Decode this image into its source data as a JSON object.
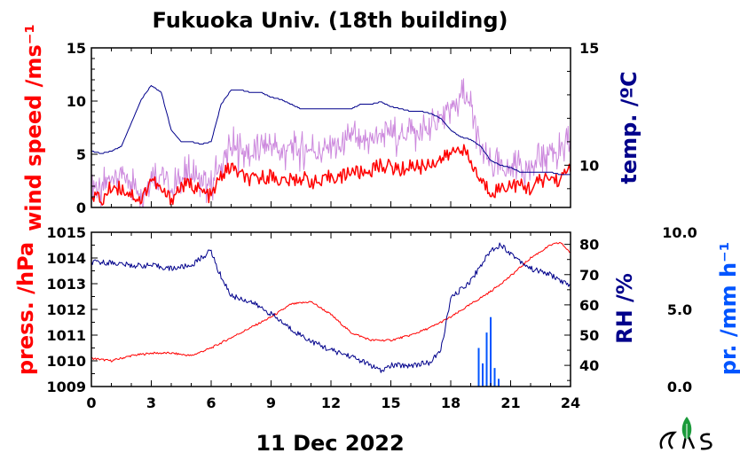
{
  "colors": {
    "red": "#ff0000",
    "navy": "#00008b",
    "pink": "#cc88dd",
    "blue": "#0055ff",
    "logo_green": "#1a9a3a",
    "axis": "#000000"
  },
  "chart_data": [
    {
      "type": "line",
      "title": "Fukuoka Univ. (18th building)",
      "xlabel": "11 Dec 2022",
      "ylabel_left": "wind speed /ms⁻¹",
      "ylabel_right": "temp. /ºC",
      "xlim": [
        0,
        24
      ],
      "ylim_left": [
        0,
        15
      ],
      "ylim_right": [
        8.2,
        15
      ],
      "x_ticks": [
        "0",
        "3",
        "6",
        "9",
        "12",
        "15",
        "18",
        "21",
        "24"
      ],
      "y_ticks_left": [
        "0",
        "5",
        "10",
        "15"
      ],
      "y_ticks_right": [
        "10",
        "15"
      ],
      "series": [
        {
          "axis": "left",
          "color": "#cc88dd",
          "style": "gust",
          "x": [
            0,
            0.5,
            1,
            1.5,
            2,
            2.5,
            3,
            3.5,
            4,
            4.5,
            5,
            5.5,
            6,
            6.5,
            7,
            7.5,
            8,
            8.5,
            9,
            9.5,
            10,
            10.5,
            11,
            11.5,
            12,
            12.5,
            13,
            13.5,
            14,
            14.5,
            15,
            15.5,
            16,
            16.5,
            17,
            17.5,
            18,
            18.5,
            19,
            19.5,
            20,
            20.5,
            21,
            21.5,
            22,
            22.5,
            23,
            23.5,
            24
          ],
          "y": [
            2.5,
            1.5,
            3.0,
            2.8,
            2.5,
            1.2,
            3.0,
            3.2,
            1.5,
            2.8,
            3.0,
            2.5,
            1.8,
            4.0,
            5.5,
            5.2,
            4.8,
            5.5,
            6.0,
            5.0,
            5.8,
            5.2,
            5.5,
            5.0,
            6.0,
            5.5,
            6.8,
            6.0,
            6.5,
            7.0,
            6.8,
            6.5,
            7.2,
            6.8,
            7.5,
            8.5,
            9.0,
            10.5,
            9.5,
            5.5,
            4.0,
            3.5,
            3.8,
            4.2,
            3.5,
            4.5,
            5.5,
            5.0,
            6.0
          ]
        },
        {
          "axis": "left",
          "color": "#ff0000",
          "style": "wind",
          "x": [
            0,
            0.5,
            1,
            1.5,
            2,
            2.5,
            3,
            3.5,
            4,
            4.5,
            5,
            5.5,
            6,
            6.5,
            7,
            7.5,
            8,
            8.5,
            9,
            9.5,
            10,
            10.5,
            11,
            11.5,
            12,
            12.5,
            13,
            13.5,
            14,
            14.5,
            15,
            15.5,
            16,
            16.5,
            17,
            17.5,
            18,
            18.5,
            19,
            19.5,
            20,
            20.5,
            21,
            21.5,
            22,
            22.5,
            23,
            23.5,
            24
          ],
          "y": [
            1.5,
            0.5,
            2.0,
            1.8,
            1.3,
            0.6,
            2.8,
            1.5,
            0.8,
            2.0,
            2.2,
            1.5,
            1.0,
            3.0,
            3.8,
            3.0,
            2.5,
            2.8,
            3.0,
            2.5,
            2.5,
            2.8,
            2.5,
            2.2,
            3.0,
            2.8,
            3.5,
            3.2,
            3.5,
            4.0,
            3.8,
            3.5,
            4.0,
            3.8,
            4.2,
            4.5,
            5.0,
            5.8,
            4.2,
            2.5,
            1.5,
            1.8,
            2.2,
            2.0,
            1.8,
            2.5,
            2.8,
            2.5,
            4.0
          ]
        },
        {
          "axis": "right",
          "color": "#00008b",
          "style": "temp",
          "x": [
            0,
            0.5,
            1,
            1.5,
            2,
            2.5,
            3,
            3.5,
            4,
            4.5,
            5,
            5.5,
            6,
            6.5,
            7,
            7.5,
            8,
            8.5,
            9,
            9.5,
            10,
            10.5,
            11,
            11.5,
            12,
            12.5,
            13,
            13.5,
            14,
            14.5,
            15,
            15.5,
            16,
            16.5,
            17,
            17.5,
            18,
            18.5,
            19,
            19.5,
            20,
            20.5,
            21,
            21.5,
            22,
            22.5,
            23,
            23.5,
            24
          ],
          "y": [
            10.6,
            10.5,
            10.6,
            10.8,
            11.8,
            12.8,
            13.4,
            13.1,
            11.5,
            11.0,
            11.0,
            10.9,
            11.0,
            12.6,
            13.2,
            13.2,
            13.1,
            13.1,
            12.9,
            12.8,
            12.6,
            12.4,
            12.4,
            12.4,
            12.4,
            12.4,
            12.4,
            12.6,
            12.6,
            12.7,
            12.5,
            12.4,
            12.3,
            12.3,
            12.2,
            12.0,
            11.5,
            11.2,
            11.1,
            10.8,
            10.2,
            10.0,
            9.9,
            9.7,
            9.7,
            9.7,
            9.7,
            9.6,
            9.6
          ]
        }
      ]
    },
    {
      "type": "line",
      "xlabel": "11 Dec 2022",
      "ylabel_left": "press. /hPa",
      "ylabel_right": "RH /%",
      "ylabel_right2": "pr. /mm h⁻¹",
      "xlim": [
        0,
        24
      ],
      "ylim_left": [
        1009,
        1015
      ],
      "ylim_right": [
        33,
        84
      ],
      "ylim_right2": [
        0,
        10
      ],
      "x_ticks": [
        "0",
        "3",
        "6",
        "9",
        "12",
        "15",
        "18",
        "21",
        "24"
      ],
      "y_ticks_left": [
        "1009",
        "1010",
        "1011",
        "1012",
        "1013",
        "1014",
        "1015"
      ],
      "y_ticks_right": [
        "40",
        "50",
        "60",
        "70",
        "80"
      ],
      "y_ticks_right2": [
        "0.0",
        "5.0",
        "10.0"
      ],
      "series": [
        {
          "axis": "left",
          "color": "#ff0000",
          "style": "pressure",
          "x": [
            0,
            1,
            2,
            3,
            4,
            5,
            6,
            7,
            8,
            9,
            10,
            11,
            12,
            13,
            14,
            15,
            16,
            17,
            18,
            19,
            20,
            21,
            22,
            23,
            23.5,
            24
          ],
          "y": [
            1010.1,
            1010.0,
            1010.2,
            1010.3,
            1010.3,
            1010.2,
            1010.5,
            1010.9,
            1011.3,
            1011.7,
            1012.2,
            1012.3,
            1011.8,
            1011.1,
            1010.8,
            1010.8,
            1011.0,
            1011.3,
            1011.7,
            1012.2,
            1012.7,
            1013.3,
            1014.0,
            1014.5,
            1014.6,
            1014.2
          ]
        },
        {
          "axis": "right",
          "color": "#00008b",
          "style": "rh",
          "x": [
            0,
            1,
            2,
            3,
            4,
            5,
            6,
            6.3,
            7,
            8,
            9,
            10,
            11,
            12,
            13,
            14,
            14.5,
            15,
            16,
            17,
            17.5,
            18,
            19,
            20,
            20.5,
            21,
            22,
            23,
            24
          ],
          "y": [
            74,
            74,
            73,
            73,
            72,
            73,
            78,
            72,
            63,
            61,
            57,
            52,
            48,
            45,
            43,
            40,
            38,
            40,
            40,
            41,
            45,
            62,
            68,
            78,
            80,
            77,
            72,
            70,
            66
          ]
        },
        {
          "axis": "right2",
          "color": "#0055ff",
          "style": "rain",
          "x": [
            19.4,
            19.6,
            19.8,
            20.0,
            20.2,
            20.4
          ],
          "y": [
            2.5,
            1.5,
            3.5,
            4.5,
            1.2,
            0.5
          ]
        }
      ]
    }
  ]
}
